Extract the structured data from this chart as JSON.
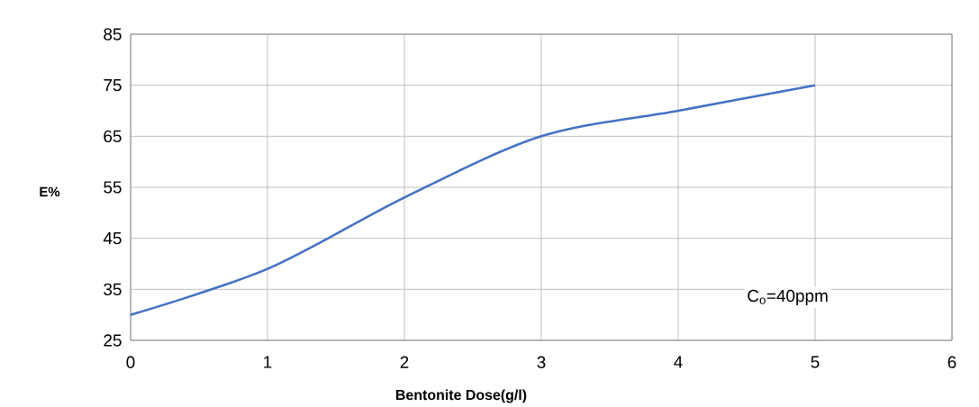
{
  "chart_data": {
    "type": "line",
    "xlabel": "Bentonite Dose(g/l)",
    "ylabel": "E%",
    "x": [
      0,
      1,
      2,
      3,
      4,
      5
    ],
    "series": [
      {
        "color": "#4472c4",
        "values": [
          30,
          39,
          53,
          65,
          70,
          75
        ]
      }
    ],
    "xlim": [
      0,
      6
    ],
    "ylim": [
      25,
      85
    ],
    "xticks": [
      0,
      1,
      2,
      3,
      4,
      5,
      6
    ],
    "yticks": [
      25,
      35,
      45,
      55,
      65,
      75,
      85
    ],
    "grid": true,
    "line_style": "solid",
    "annotations": [
      "C$_{o}$=40ppm"
    ]
  }
}
